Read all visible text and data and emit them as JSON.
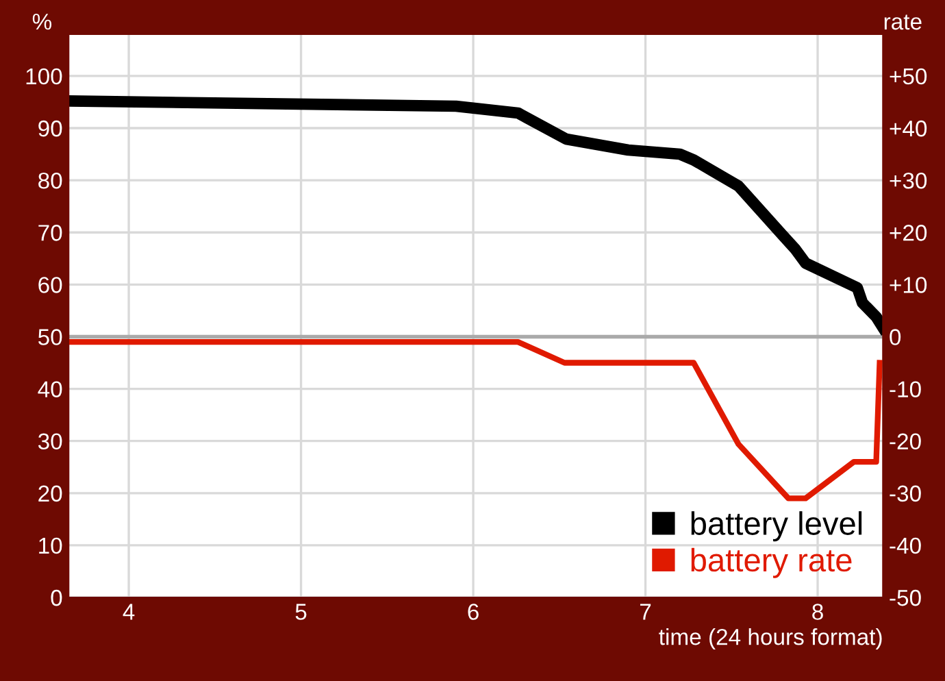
{
  "chart_data": {
    "type": "line",
    "xlabel": "time (24 hours format)",
    "ylabel": "%",
    "y2label": "rate",
    "series": [
      {
        "name": "battery level",
        "color": "#000000",
        "x": [
          3.65,
          5.9,
          6.26,
          6.54,
          6.9,
          7.2,
          7.28,
          7.54,
          7.79,
          7.87,
          7.93,
          8.23,
          8.26,
          8.34,
          8.38
        ],
        "values": [
          95.2,
          94.2,
          92.9,
          87.9,
          85.8,
          85.0,
          83.9,
          78.9,
          69.7,
          66.8,
          64.1,
          59.4,
          56.5,
          53.8,
          51.7
        ]
      },
      {
        "name": "battery rate",
        "color": "#e01a00",
        "axis": "y2",
        "x": [
          3.65,
          6.26,
          6.53,
          7.28,
          7.54,
          7.83,
          7.93,
          8.21,
          8.34,
          8.36
        ],
        "values": [
          -1,
          -1,
          -5,
          -5,
          -20.6,
          -31,
          -31,
          -24,
          -24,
          -5
        ]
      }
    ],
    "xlim": [
      3.65,
      8.38
    ],
    "xticks": [
      4,
      5,
      6,
      7,
      8
    ],
    "ylim": [
      0,
      108
    ],
    "yticks": [
      0,
      10,
      20,
      30,
      40,
      50,
      60,
      70,
      80,
      90,
      100
    ],
    "y2lim": [
      -50,
      58
    ],
    "y2ticks": [
      {
        "value": -50,
        "label": "-50"
      },
      {
        "value": -40,
        "label": "-40"
      },
      {
        "value": -30,
        "label": "-30"
      },
      {
        "value": -20,
        "label": "-20"
      },
      {
        "value": -10,
        "label": "-10"
      },
      0,
      {
        "value": 10,
        "label": "+10"
      },
      {
        "value": 20,
        "label": "+20"
      },
      {
        "value": 30,
        "label": "+30"
      },
      {
        "value": 40,
        "label": "+40"
      },
      {
        "value": 50,
        "label": "+50"
      }
    ],
    "ref_lines": [
      {
        "axis": "y",
        "value": 50,
        "color": "#aaaaaa"
      }
    ],
    "grid": true,
    "legend": "bottom right",
    "marker": "none",
    "line_style": "solid"
  }
}
